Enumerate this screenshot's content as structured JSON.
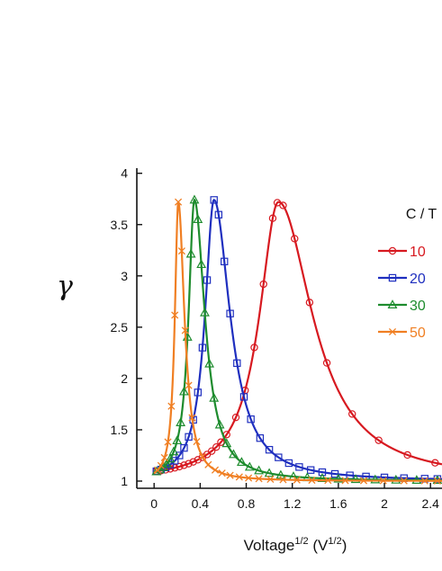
{
  "chart_data": {
    "type": "line",
    "title": "",
    "xlabel_main": "Voltage",
    "xlabel_sup": "1/2",
    "xlabel_unit_open": " (V",
    "xlabel_unit_sup": "1/2",
    "xlabel_unit_close": ")",
    "ylabel": "γ",
    "xlim": [
      -0.15,
      2.5
    ],
    "ylim": [
      0.93,
      4.05
    ],
    "xticks": [
      0,
      0.4,
      0.8,
      1.2,
      1.6,
      2,
      2.4
    ],
    "xtick_labels": [
      "0",
      "0.4",
      "0.8",
      "1.2",
      "1.6",
      "2",
      "2.4"
    ],
    "yticks": [
      1,
      1.5,
      2,
      2.5,
      3,
      3.5,
      4
    ],
    "ytick_labels": [
      "1",
      "1.5",
      "2",
      "2.5",
      "3",
      "3.5",
      "4"
    ],
    "legend_title": "C / T",
    "legend_position": "right",
    "series": [
      {
        "name": "10",
        "color": "#d71920",
        "marker": "circle",
        "peak_x": 1.08,
        "peak_y": 3.72,
        "width": 0.36,
        "marker_x": [
          0.02,
          0.06,
          0.1,
          0.14,
          0.18,
          0.22,
          0.26,
          0.3,
          0.34,
          0.38,
          0.42,
          0.46,
          0.5,
          0.54,
          0.58,
          0.63,
          0.71,
          0.79,
          0.87,
          0.95,
          1.03,
          1.07,
          1.12,
          1.22,
          1.35,
          1.5,
          1.72,
          1.95,
          2.2,
          2.44
        ]
      },
      {
        "name": "20",
        "color": "#1f2fbf",
        "marker": "square",
        "peak_x": 0.52,
        "peak_y": 3.74,
        "width": 0.17,
        "marker_x": [
          0.02,
          0.06,
          0.1,
          0.14,
          0.18,
          0.22,
          0.26,
          0.3,
          0.34,
          0.38,
          0.42,
          0.46,
          0.52,
          0.56,
          0.61,
          0.66,
          0.72,
          0.78,
          0.84,
          0.92,
          1.0,
          1.08,
          1.17,
          1.26,
          1.36,
          1.46,
          1.57,
          1.7,
          1.84,
          2.0,
          2.17,
          2.35,
          2.46
        ]
      },
      {
        "name": "30",
        "color": "#1e8c2e",
        "marker": "triangle",
        "peak_x": 0.35,
        "peak_y": 3.74,
        "width": 0.11,
        "marker_x": [
          0.02,
          0.05,
          0.08,
          0.11,
          0.14,
          0.17,
          0.2,
          0.23,
          0.26,
          0.29,
          0.32,
          0.35,
          0.38,
          0.41,
          0.44,
          0.48,
          0.52,
          0.57,
          0.63,
          0.69,
          0.76,
          0.83,
          0.91,
          1.0,
          1.1,
          1.21,
          1.33,
          1.46,
          1.6,
          1.75,
          1.92,
          2.1,
          2.28,
          2.46
        ]
      },
      {
        "name": "50",
        "color": "#f07f23",
        "marker": "cross",
        "peak_x": 0.21,
        "peak_y": 3.72,
        "width": 0.065,
        "marker_x": [
          0.03,
          0.06,
          0.09,
          0.12,
          0.15,
          0.18,
          0.21,
          0.24,
          0.27,
          0.3,
          0.33,
          0.37,
          0.42,
          0.47,
          0.53,
          0.59,
          0.66,
          0.74,
          0.82,
          0.91,
          1.01,
          1.12,
          1.24,
          1.37,
          1.51,
          1.66,
          1.82,
          1.99,
          2.17,
          2.35,
          2.46
        ]
      }
    ]
  }
}
